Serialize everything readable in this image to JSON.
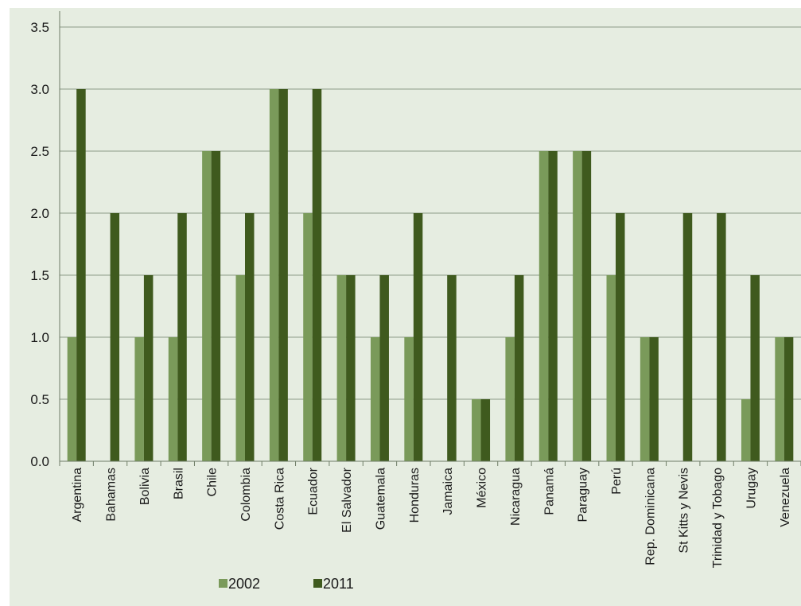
{
  "chart_data": {
    "type": "bar",
    "title": "",
    "xlabel": "",
    "ylabel": "",
    "ylim": [
      0,
      3.5
    ],
    "yticks": [
      "0.0",
      "0.5",
      "1.0",
      "1.5",
      "2.0",
      "2.5",
      "3.0",
      "3.5"
    ],
    "grid": true,
    "legend_position": "bottom-left",
    "categories": [
      "Argentina",
      "Bahamas",
      "Bolivia",
      "Brasil",
      "Chile",
      "Colombia",
      "Costa Rica",
      "Ecuador",
      "El Salvador",
      "Guatemala",
      "Honduras",
      "Jamaica",
      "México",
      "Nicaragua",
      "Panamá",
      "Paraguay",
      "Perú",
      "Rep. Dominicana",
      "St Kitts y Nevis",
      "Trinidad y Tobago",
      "Urugay",
      "Venezuela"
    ],
    "series": [
      {
        "name": "2002",
        "color": "#7a9a5a",
        "values": [
          1.0,
          0,
          1.0,
          1.0,
          2.5,
          1.5,
          3.0,
          2.0,
          1.5,
          1.0,
          1.0,
          0,
          0.5,
          1.0,
          2.5,
          2.5,
          1.5,
          1.0,
          0,
          0,
          0.5,
          1.0
        ]
      },
      {
        "name": "2011",
        "color": "#3f5a1e",
        "values": [
          3.0,
          2.0,
          1.5,
          2.0,
          2.5,
          2.0,
          3.0,
          3.0,
          1.5,
          1.5,
          2.0,
          1.5,
          0.5,
          1.5,
          2.5,
          2.5,
          2.0,
          1.0,
          2.0,
          2.0,
          1.5,
          1.0
        ]
      }
    ]
  }
}
